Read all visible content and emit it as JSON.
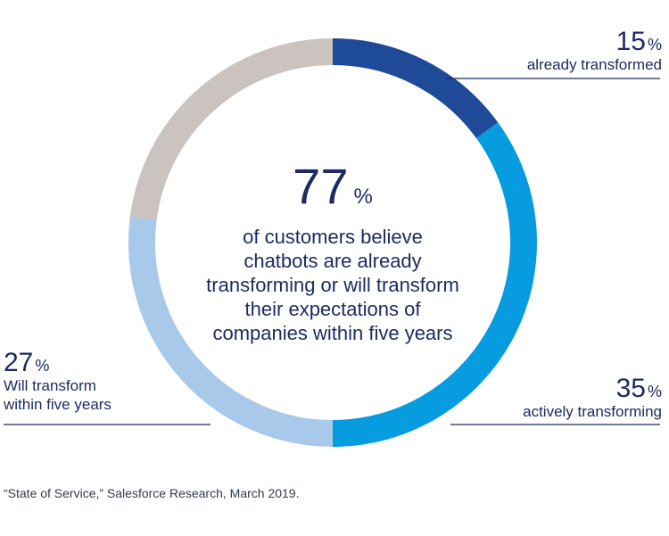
{
  "chart_data": {
    "type": "pie",
    "subtype": "donut",
    "categories": [
      "already transformed",
      "actively transforming",
      "Will transform within five years",
      ""
    ],
    "values": [
      15,
      35,
      27,
      23
    ],
    "colors": [
      "#1f4a97",
      "#079be0",
      "#a9c9ea",
      "#cac3bf"
    ],
    "center": {
      "value": "77",
      "unit": "%",
      "text": "of customers believe chatbots are already transforming or will transform their expectations of companies within five years"
    }
  },
  "labels": {
    "already": {
      "value": "15",
      "unit": "%",
      "text": "already transformed"
    },
    "actively": {
      "value": "35",
      "unit": "%",
      "text": "actively transforming"
    },
    "will": {
      "value": "27",
      "unit": "%",
      "line1": "Will transform",
      "line2": "within five years"
    }
  },
  "source": "“State of Service,” Salesforce Research, March 2019."
}
